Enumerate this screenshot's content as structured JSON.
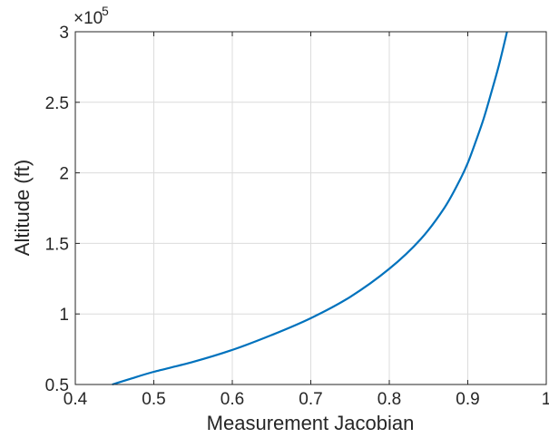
{
  "chart_data": {
    "type": "line",
    "xlabel": "Measurement Jacobian",
    "ylabel": "Altitude (ft)",
    "xlim": [
      0.4,
      1.0
    ],
    "ylim": [
      50000,
      300000
    ],
    "x_ticks": [
      0.4,
      0.5,
      0.6,
      0.7,
      0.8,
      0.9,
      1.0
    ],
    "x_tick_labels": [
      "0.4",
      "0.5",
      "0.6",
      "0.7",
      "0.8",
      "0.9",
      "1"
    ],
    "y_ticks": [
      50000,
      100000,
      150000,
      200000,
      250000,
      300000
    ],
    "y_tick_labels": [
      "0.5",
      "1",
      "1.5",
      "2",
      "2.5",
      "3"
    ],
    "y_exponent_base": "×10",
    "y_exponent_power": "5",
    "grid": true,
    "legend": false,
    "series": [
      {
        "color": "#0072bd",
        "x": [
          0.447,
          0.47,
          0.5,
          0.55,
          0.6,
          0.65,
          0.7,
          0.75,
          0.8,
          0.84,
          0.87,
          0.89,
          0.9,
          0.91,
          0.92,
          0.93,
          0.94,
          0.95
        ],
        "y": [
          50000,
          54000,
          59000,
          66000,
          74500,
          85000,
          97000,
          112000,
          132000,
          153000,
          175000,
          195000,
          207000,
          222000,
          238000,
          257000,
          277000,
          300000
        ]
      }
    ]
  }
}
